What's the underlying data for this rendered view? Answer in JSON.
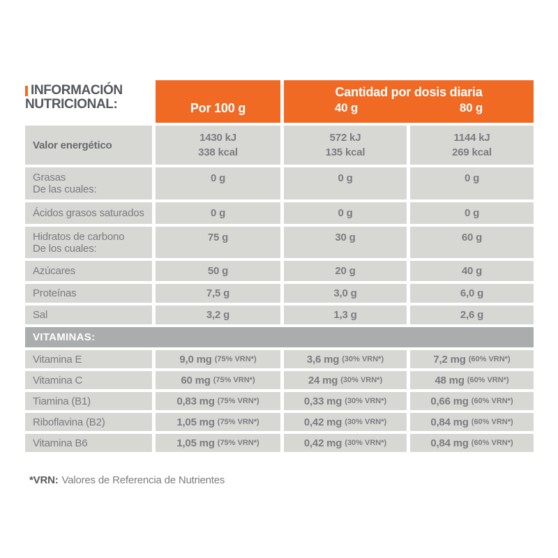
{
  "colors": {
    "accent_orange": "#F06A24",
    "cell_gray": "#D7D8D4",
    "band_gray": "#ABACAE",
    "title_text": "#54575C",
    "body_text": "#7A7B7E",
    "header_text_on_orange": "#FFFFFF"
  },
  "header": {
    "title_line1": "INFORMACIÓN",
    "title_line2": "NUTRICIONAL:",
    "col_per100": "Por 100 g",
    "daily_title": "Cantidad por dosis diaria",
    "col_40": "40 g",
    "col_80": "80 g"
  },
  "nutrients": {
    "rows": [
      {
        "label": "Valor energético",
        "v100": "1430 kJ",
        "v100b": "338 kcal",
        "v40": "572 kJ",
        "v40b": "135 kcal",
        "v80": "1144 kJ",
        "v80b": "269 kcal"
      },
      {
        "label": "Grasas",
        "sublabel": "De las cuales:",
        "v100": "0 g",
        "v40": "0 g",
        "v80": "0 g"
      },
      {
        "label": "Ácidos grasos saturados",
        "v100": "0 g",
        "v40": "0 g",
        "v80": "0 g"
      },
      {
        "label": "Hidratos de carbono",
        "sublabel": "De los cuales:",
        "v100": "75 g",
        "v40": "30 g",
        "v80": "60 g"
      },
      {
        "label": "Azúcares",
        "v100": "50 g",
        "v40": "20 g",
        "v80": "40 g"
      },
      {
        "label": "Proteínas",
        "v100": "7,5 g",
        "v40": "3,0 g",
        "v80": "6,0 g"
      },
      {
        "label": "Sal",
        "v100": "3,2 g",
        "v40": "1,3 g",
        "v80": "2,6 g"
      }
    ]
  },
  "vitamins_section": {
    "title": "VITAMINAS:",
    "rows": [
      {
        "label": "Vitamina E",
        "v100": "9,0 mg",
        "v100n": "(75% VRN*)",
        "v40": "3,6 mg",
        "v40n": "(30% VRN*)",
        "v80": "7,2 mg",
        "v80n": "(60% VRN*)"
      },
      {
        "label": "Vitamina C",
        "v100": "60 mg",
        "v100n": "(75% VRN*)",
        "v40": "24 mg",
        "v40n": "(30% VRN*)",
        "v80": "48 mg",
        "v80n": "(60% VRN*)"
      },
      {
        "label": "Tiamina (B1)",
        "v100": "0,83 mg",
        "v100n": "(75% VRN*)",
        "v40": "0,33 mg",
        "v40n": "(30% VRN*)",
        "v80": "0,66 mg",
        "v80n": "(60% VRN*)"
      },
      {
        "label": "Riboflavina (B2)",
        "v100": "1,05 mg",
        "v100n": "(75% VRN*)",
        "v40": "0,42 mg",
        "v40n": "(30% VRN*)",
        "v80": "0,84 mg",
        "v80n": "(60% VRN*)"
      },
      {
        "label": "Vitamina B6",
        "v100": "1,05 mg",
        "v100n": "(75% VRN*)",
        "v40": "0,42 mg",
        "v40n": "(30% VRN*)",
        "v80": "0,84 mg",
        "v80n": "(60% VRN*)"
      }
    ]
  },
  "footnote": {
    "term": "*VRN:",
    "definition": "Valores de Referencia de Nutrientes"
  }
}
